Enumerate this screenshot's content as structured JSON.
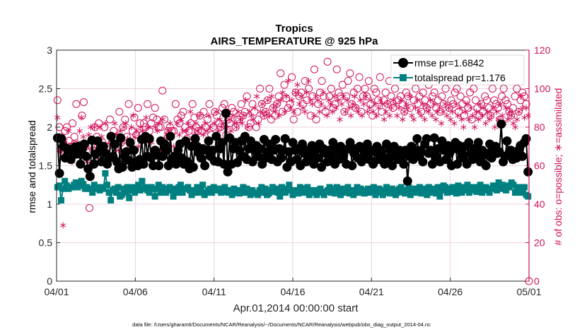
{
  "chart_data": {
    "type": "line",
    "title": "Tropics",
    "subtitle": "AIRS_TEMPERATURE @ 925 hPa",
    "xlabel": "Apr.01,2014 00:00:00 start",
    "ylabel_left": "rmse and totalspread",
    "ylabel_right": "# of obs: o=possible; ∗=assimilated",
    "footnote": "data file: /Users/gharamti/Documents/NCAR/Reanalysis/~/Documents/NCAR/Reanalysis/webpub/obs_diag_output_2014-04.nc",
    "x_ticks": [
      {
        "day": 0,
        "label": "04/01"
      },
      {
        "day": 5,
        "label": "04/06"
      },
      {
        "day": 10,
        "label": "04/11"
      },
      {
        "day": 15,
        "label": "04/16"
      },
      {
        "day": 20,
        "label": "04/21"
      },
      {
        "day": 25,
        "label": "04/26"
      },
      {
        "day": 30,
        "label": "05/01"
      }
    ],
    "xlim": [
      0,
      30
    ],
    "ylim_left": [
      0,
      3
    ],
    "ylim_right": [
      0,
      120
    ],
    "y_ticks_left": [
      "0",
      "0.5",
      "1",
      "1.5",
      "2",
      "2.5",
      "3"
    ],
    "y_ticks_right": [
      "0",
      "20",
      "40",
      "60",
      "80",
      "100",
      "120"
    ],
    "legend": {
      "placement": "top-right",
      "entries": [
        "rmse pr=1.6842",
        "totalspread pr=1.176"
      ]
    },
    "colors": {
      "rmse": "#000000",
      "totalspread": "#008080",
      "obs": "#d0105a",
      "grid": "#e8c6d6",
      "axis": "#262626"
    },
    "series": [
      {
        "name": "rmse",
        "axis": "left",
        "values": [
          1.86,
          1.4,
          1.85,
          1.75,
          1.6,
          1.72,
          1.7,
          1.58,
          1.68,
          1.74,
          1.65,
          1.75,
          1.52,
          1.72,
          1.78,
          1.62,
          1.46,
          1.36,
          1.83,
          1.52,
          1.65,
          1.82,
          1.7,
          1.55,
          1.75,
          1.66,
          1.52,
          1.6,
          1.88,
          1.62,
          1.78,
          1.55,
          1.46,
          1.86,
          1.48,
          1.62,
          1.68,
          1.57,
          1.8,
          1.48,
          1.7,
          1.55,
          1.5,
          1.58,
          1.84,
          1.52,
          1.88,
          1.62,
          1.85,
          1.6,
          1.5,
          1.7,
          1.64,
          1.5,
          1.82,
          1.62,
          1.78,
          1.7,
          1.5,
          1.88,
          1.55,
          1.62,
          1.52,
          1.7,
          1.78,
          1.6,
          1.52,
          1.82,
          1.55,
          1.46,
          1.75,
          1.48,
          1.85,
          1.75,
          1.66,
          1.6,
          1.72,
          1.5,
          1.7,
          1.82,
          1.62,
          1.7,
          1.56,
          1.88,
          1.55,
          1.72,
          1.8,
          1.52,
          2.18,
          1.42,
          1.86,
          1.52,
          1.72,
          1.8,
          1.54,
          1.7,
          1.82,
          1.62,
          1.88,
          1.58,
          1.72,
          1.82,
          1.55,
          1.7,
          1.76,
          1.62,
          1.72,
          1.52,
          1.84,
          1.6,
          1.68,
          1.78,
          1.58,
          1.7,
          1.84,
          1.55,
          1.72,
          1.6,
          1.7,
          1.85,
          1.48,
          1.68,
          1.55,
          1.8,
          1.7,
          1.58,
          1.72,
          1.5,
          1.78,
          1.66,
          1.55,
          1.7,
          1.62,
          1.76,
          1.52,
          1.7,
          1.6,
          1.78,
          1.48,
          1.72,
          1.66,
          1.55,
          1.7,
          1.62,
          1.8,
          1.52,
          1.7,
          1.58,
          1.75,
          1.62,
          1.7,
          1.52,
          1.72,
          1.8,
          1.5,
          1.66,
          1.72,
          1.6,
          1.75,
          1.55,
          1.7,
          1.62,
          1.78,
          1.58,
          1.7,
          1.52,
          1.68,
          1.75,
          1.58,
          1.7,
          1.62,
          1.52,
          1.78,
          1.6,
          1.7,
          1.5,
          1.75,
          1.65,
          1.58,
          1.7,
          1.62,
          1.52,
          1.7,
          1.3,
          1.62,
          1.75,
          1.58,
          1.7,
          1.85,
          1.62,
          1.7,
          1.55,
          1.78,
          1.85,
          1.66,
          1.7,
          1.52,
          1.86,
          1.62,
          1.72,
          1.55,
          1.82,
          1.7,
          1.58,
          1.76,
          1.66,
          1.5,
          1.72,
          1.8,
          1.52,
          1.76,
          1.68,
          1.6,
          1.75,
          1.52,
          1.8,
          1.66,
          1.58,
          1.72,
          1.62,
          1.8,
          1.55,
          1.7,
          1.64,
          1.5,
          1.66,
          1.78,
          1.6,
          1.72,
          1.75,
          1.66,
          1.68,
          2.04,
          1.55,
          1.62,
          1.82,
          1.66,
          1.7,
          1.58,
          1.62,
          1.6,
          1.7,
          1.76,
          1.62,
          1.8,
          1.85,
          1.42
        ]
      },
      {
        "name": "totalspread",
        "axis": "left",
        "values": [
          1.22,
          1.24,
          1.05,
          1.2,
          1.3,
          1.24,
          1.2,
          1.22,
          1.22,
          1.25,
          1.28,
          1.22,
          1.24,
          1.3,
          1.26,
          1.2,
          1.22,
          1.2,
          1.2,
          1.15,
          1.25,
          1.22,
          1.2,
          1.18,
          1.22,
          1.2,
          1.4,
          1.25,
          1.15,
          1.05,
          1.18,
          1.2,
          1.15,
          1.22,
          1.1,
          1.12,
          1.2,
          1.15,
          1.22,
          1.08,
          1.18,
          1.22,
          1.15,
          1.2,
          1.25,
          1.18,
          1.3,
          1.2,
          1.22,
          1.18,
          1.15,
          1.22,
          1.2,
          1.1,
          1.2,
          1.25,
          1.15,
          1.22,
          1.18,
          1.15,
          1.2,
          1.22,
          1.18,
          1.1,
          1.2,
          1.15,
          1.22,
          1.25,
          1.15,
          1.2,
          1.2,
          1.22,
          1.18,
          1.12,
          1.15,
          1.18,
          1.22,
          1.15,
          1.2,
          1.25,
          1.12,
          1.15,
          1.18,
          1.2,
          1.15,
          1.22,
          1.18,
          1.2,
          1.18,
          1.15,
          1.2,
          1.22,
          1.16,
          1.15,
          1.18,
          1.12,
          1.2,
          1.15,
          1.18,
          1.14,
          1.16,
          1.22,
          1.15,
          1.2,
          1.16,
          1.12,
          1.18,
          1.15,
          1.14,
          1.12,
          1.18,
          1.22,
          1.15,
          1.2,
          1.12,
          1.14,
          1.18,
          1.22,
          1.16,
          1.2,
          1.15,
          1.1,
          1.22,
          1.18,
          1.15,
          1.2,
          1.25,
          1.18,
          1.12,
          1.15,
          1.18,
          1.14,
          1.22,
          1.2,
          1.15,
          1.18,
          1.22,
          1.12,
          1.16,
          1.18,
          1.15,
          1.12,
          1.18,
          1.2,
          1.15,
          1.12,
          1.16,
          1.18,
          1.22,
          1.15,
          1.2,
          1.14,
          1.22,
          1.16,
          1.12,
          1.2,
          1.15,
          1.18,
          1.22,
          1.14,
          1.18,
          1.12,
          1.16,
          1.22,
          1.15,
          1.2,
          1.18,
          1.14,
          1.16,
          1.2,
          1.15,
          1.18,
          1.22,
          1.12,
          1.15,
          1.2,
          1.16,
          1.12,
          1.18,
          1.22,
          1.15,
          1.14,
          1.2,
          1.18,
          1.12,
          1.15,
          1.2,
          1.22,
          1.16,
          1.14,
          1.18,
          1.22,
          1.12,
          1.16,
          1.2,
          1.15,
          1.18,
          1.22,
          1.14,
          1.16,
          1.2,
          1.12,
          1.22,
          1.18,
          1.15,
          1.2,
          1.14,
          1.22,
          1.1,
          1.18,
          1.24,
          1.22,
          1.15,
          1.2,
          1.16,
          1.22,
          1.18,
          1.14,
          1.24,
          1.2,
          1.15,
          1.22,
          1.18,
          1.25,
          1.15,
          1.2,
          1.22,
          1.18,
          1.16,
          1.22,
          1.25,
          1.15,
          1.2,
          1.22,
          1.18,
          1.15,
          1.2,
          1.24,
          1.22,
          1.18,
          1.28,
          1.2,
          1.25,
          1.22,
          1.18,
          1.24,
          1.22,
          1.28,
          1.25,
          1.15,
          1.2,
          1.22,
          1.15,
          1.2,
          1.22,
          1.12,
          1.1
        ]
      },
      {
        "name": "possible",
        "axis": "right",
        "marker": "circle",
        "values": [
          94,
          80,
          75,
          72,
          78,
          80,
          73,
          70,
          82,
          75,
          92,
          68,
          66,
          86,
          93,
          70,
          60,
          38,
          70,
          68,
          80,
          75,
          82,
          65,
          72,
          80,
          65,
          70,
          84,
          72,
          78,
          75,
          66,
          88,
          72,
          80,
          84,
          75,
          92,
          70,
          78,
          85,
          76,
          90,
          82,
          76,
          82,
          80,
          92,
          78,
          82,
          85,
          90,
          84,
          80,
          80,
          99,
          84,
          68,
          78,
          80,
          78,
          78,
          92,
          84,
          82,
          86,
          88,
          80,
          74,
          78,
          82,
          92,
          85,
          80,
          78,
          86,
          78,
          88,
          80,
          84,
          92,
          76,
          80,
          88,
          86,
          82,
          80,
          90,
          92,
          76,
          84,
          82,
          90,
          88,
          80,
          84,
          84,
          92,
          86,
          88,
          96,
          80,
          82,
          92,
          88,
          80,
          84,
          100,
          92,
          86,
          88,
          94,
          100,
          84,
          90,
          86,
          92,
          96,
          108,
          88,
          102,
          95,
          90,
          92,
          106,
          84,
          98,
          88,
          96,
          98,
          92,
          104,
          94,
          100,
          86,
          96,
          110,
          84,
          92,
          98,
          104,
          96,
          88,
          114,
          96,
          100,
          90,
          92,
          110,
          98,
          96,
          102,
          88,
          96,
          104,
          108,
          92,
          98,
          90,
          100,
          106,
          88,
          96,
          100,
          96,
          104,
          92,
          86,
          100,
          98,
          94,
          106,
          88,
          94,
          98,
          92,
          104,
          96,
          90,
          100,
          110,
          94,
          96,
          92,
          88,
          98,
          96,
          90,
          106,
          94,
          100,
          92,
          96,
          88,
          98,
          94,
          90,
          102,
          92,
          96,
          98,
          90,
          94,
          88,
          96,
          92,
          100,
          104,
          90,
          94,
          92,
          98,
          100,
          88,
          96,
          92,
          86,
          94,
          90,
          98,
          84,
          100,
          94,
          90,
          86,
          92,
          88,
          96,
          94,
          90,
          86,
          100,
          94,
          92,
          90,
          84,
          96,
          100,
          94,
          92,
          88,
          86,
          90,
          96,
          100,
          88,
          94,
          98,
          96,
          92,
          0
        ]
      },
      {
        "name": "assimilated",
        "axis": "right",
        "marker": "star",
        "values": [
          85,
          68,
          67,
          29,
          73,
          66,
          78,
          70,
          62,
          72,
          70,
          72,
          78,
          85,
          75,
          70,
          62,
          76,
          80,
          74,
          80,
          64,
          72,
          80,
          75,
          70,
          82,
          70,
          65,
          72,
          75,
          82,
          76,
          68,
          78,
          72,
          80,
          82,
          74,
          70,
          80,
          86,
          75,
          78,
          70,
          80,
          78,
          72,
          85,
          80,
          74,
          72,
          68,
          80,
          78,
          82,
          68,
          84,
          74,
          76,
          78,
          82,
          76,
          70,
          62,
          82,
          76,
          84,
          78,
          72,
          78,
          82,
          88,
          80,
          76,
          82,
          78,
          86,
          80,
          76,
          82,
          78,
          86,
          80,
          74,
          82,
          88,
          78,
          84,
          80,
          82,
          88,
          80,
          84,
          78,
          86,
          82,
          80,
          88,
          84,
          82,
          86,
          94,
          80,
          88,
          86,
          84,
          90,
          96,
          82,
          88,
          92,
          86,
          88,
          94,
          86,
          96,
          90,
          88,
          92,
          86,
          94,
          98,
          88,
          96,
          104,
          90,
          94,
          88,
          98,
          102,
          92,
          96,
          90,
          88,
          98,
          104,
          94,
          92,
          86,
          96,
          94,
          88,
          92,
          98,
          90,
          86,
          94,
          92,
          88,
          96,
          90,
          94,
          84,
          92,
          96,
          88,
          94,
          90,
          86,
          92,
          96,
          90,
          88,
          94,
          86,
          92,
          96,
          88,
          90,
          94,
          88,
          92,
          86,
          90,
          94,
          92,
          84,
          88,
          92,
          86,
          90,
          94,
          92,
          86,
          90,
          94,
          84,
          88,
          92,
          90,
          96,
          86,
          84,
          90,
          94,
          88,
          86,
          92,
          84,
          90,
          88,
          94,
          86,
          92,
          84,
          88,
          90,
          82,
          88,
          92,
          86,
          90,
          84,
          88,
          82,
          92,
          86,
          90,
          84,
          80,
          88,
          92,
          84,
          90,
          86,
          80,
          88,
          84,
          92,
          86,
          90,
          82,
          88,
          84,
          86,
          90,
          80,
          88,
          84,
          92,
          86,
          82,
          90,
          84,
          88,
          86,
          82,
          80,
          84,
          88,
          96,
          90,
          85,
          90,
          86
        ]
      }
    ]
  }
}
